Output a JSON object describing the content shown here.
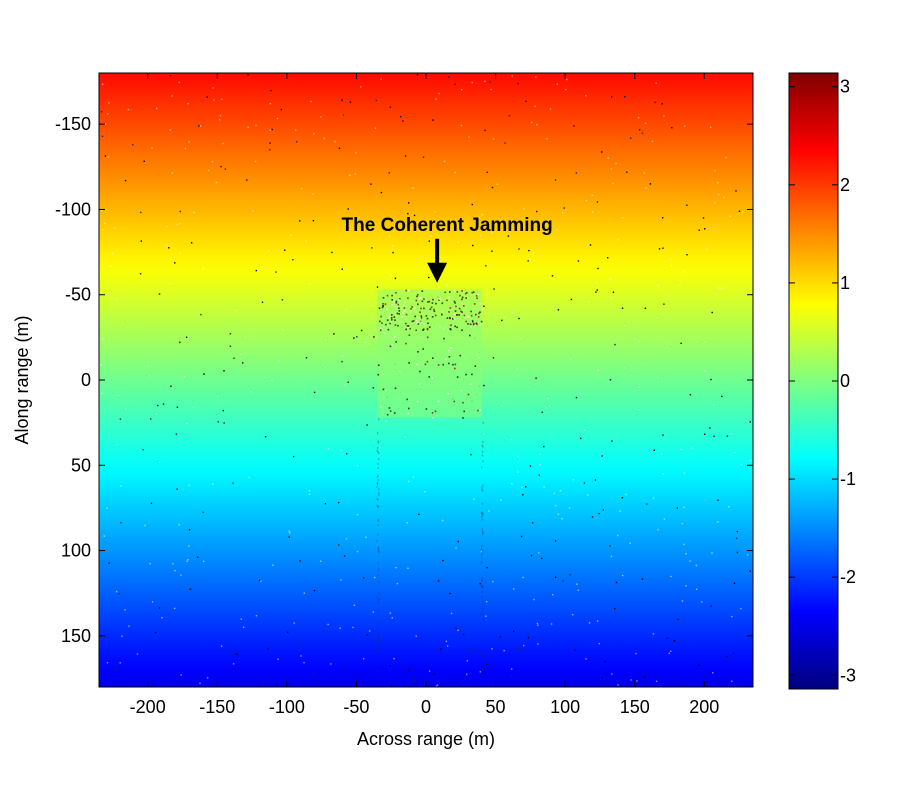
{
  "chart_data": {
    "type": "heatmap",
    "title": "",
    "xlabel": "Across range (m)",
    "ylabel": "Along range (m)",
    "xlim": [
      -235,
      235
    ],
    "ylim": [
      -180,
      180
    ],
    "y_reversed": true,
    "xticks": [
      -200,
      -150,
      -100,
      -50,
      0,
      50,
      100,
      150,
      200
    ],
    "yticks": [
      -150,
      -100,
      -50,
      0,
      50,
      100,
      150
    ],
    "colormap": "jet",
    "colorbar": {
      "limits": [
        -3.14,
        3.14
      ],
      "ticks": [
        -3,
        -2,
        -1,
        0,
        1,
        2,
        3
      ],
      "placement": "right"
    },
    "field": {
      "description": "phase varies linearly along range",
      "value_at_ylim_start": 2.3,
      "value_at_ylim_end": -2.5
    },
    "jamming_region": {
      "x": [
        -35,
        40
      ],
      "y": [
        -53,
        22
      ]
    },
    "annotation": {
      "text": "The Coherent Jamming",
      "arrow_tip": [
        8,
        -57
      ]
    },
    "grid": false
  }
}
